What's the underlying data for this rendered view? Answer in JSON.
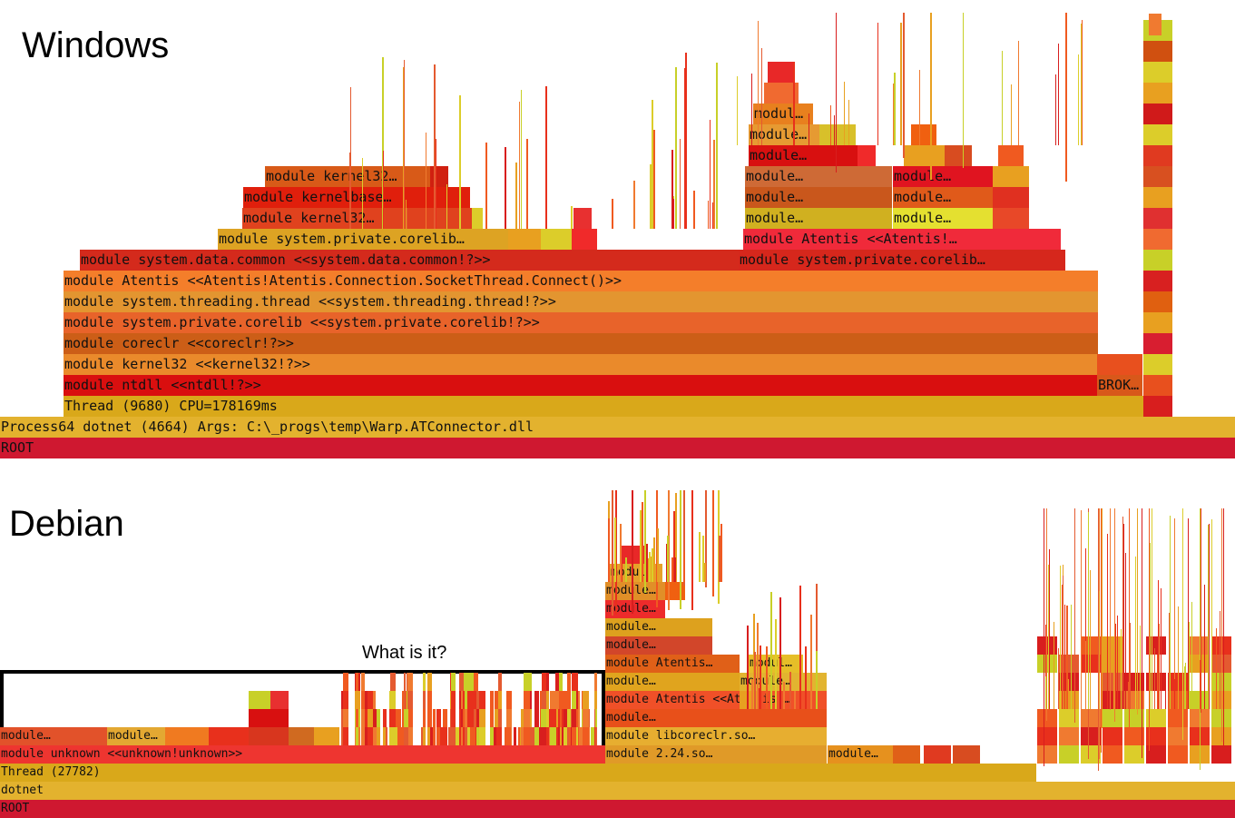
{
  "windows": {
    "title": "Windows",
    "frames": [
      {
        "label": "ROOT",
        "color": "#cf1830"
      },
      {
        "label": "Process64 dotnet (4664) Args:  C:\\_progs\\temp\\Warp.ATConnector.dll",
        "color": "#e3b22e"
      },
      {
        "label": "Thread (9680) CPU=178169ms",
        "color": "#d9a81a"
      },
      {
        "label": "module ntdll <<ntdll!?>>",
        "color": "#d90f0f"
      },
      {
        "label": "module kernel32 <<kernel32!?>>",
        "color": "#ea8a2b"
      },
      {
        "label": "module coreclr <<coreclr!?>>",
        "color": "#cc5e17"
      },
      {
        "label": "module system.private.corelib <<system.private.corelib!?>>",
        "color": "#e8632a"
      },
      {
        "label": "module system.threading.thread <<system.threading.thread!?>>",
        "color": "#e39530"
      },
      {
        "label": "module Atentis <<Atentis!Atentis.Connection.SocketThread.Connect()>>",
        "color": "#f47e2a"
      },
      {
        "label": "module system.data.common <<system.data.common!?>>",
        "color": "#d42a1c"
      },
      {
        "label": "module system.private.corelib…",
        "color": "#dda323"
      },
      {
        "label": "module kernel32…",
        "color": "#e0421e"
      },
      {
        "label": "module kernelbase…",
        "color": "#e01f0c"
      },
      {
        "label": "module kernel32…",
        "color": "#d85a18"
      },
      {
        "label": "module system.private.corelib…",
        "color": "#d6271c"
      },
      {
        "label": "module Atentis <<Atentis!…",
        "color": "#f02a3a"
      },
      {
        "label": "module…",
        "color": "#d0b020"
      },
      {
        "label": "module…",
        "color": "#c9571c"
      },
      {
        "label": "module…",
        "color": "#ce6a36"
      },
      {
        "label": "module…",
        "color": "#e4e030"
      },
      {
        "label": "module…",
        "color": "#e05a1a"
      },
      {
        "label": "module…",
        "color": "#e01420"
      },
      {
        "label": "module…",
        "color": "#d81010"
      },
      {
        "label": "module…",
        "color": "#e69a32"
      },
      {
        "label": "modul…",
        "color": "#e8801e"
      },
      {
        "label": "BROK…",
        "color": "#d8581a"
      }
    ]
  },
  "debian": {
    "title": "Debian",
    "annotation": "What is it?",
    "frames": [
      {
        "label": "ROOT",
        "color": "#cf1830"
      },
      {
        "label": "dotnet",
        "color": "#e3b22e"
      },
      {
        "label": "Thread (27782)",
        "color": "#d9a81a"
      },
      {
        "label": "module unknown <<unknown!unknown>>",
        "color": "#ee3530"
      },
      {
        "label": "module…",
        "color": "#e2522a"
      },
      {
        "label": "module…",
        "color": "#e3a832"
      },
      {
        "label": "module 2.24.so…",
        "color": "#e09a28"
      },
      {
        "label": "module libcoreclr.so…",
        "color": "#e7ae30"
      },
      {
        "label": "module…",
        "color": "#e8501a"
      },
      {
        "label": "module Atentis <<Atentis!…",
        "color": "#f05028"
      },
      {
        "label": "module…",
        "color": "#e0a41e"
      },
      {
        "label": "module…",
        "color": "#e2b430"
      },
      {
        "label": "module Atentis…",
        "color": "#e06018"
      },
      {
        "label": "modul…",
        "color": "#e6be28"
      },
      {
        "label": "module…",
        "color": "#d2462a"
      },
      {
        "label": "module…",
        "color": "#dda11e"
      },
      {
        "label": "module…",
        "color": "#ed2b2b"
      },
      {
        "label": "module…",
        "color": "#e18f28"
      },
      {
        "label": "modul…",
        "color": "#e6a12a"
      },
      {
        "label": "module…",
        "color": "#e6911e"
      }
    ]
  }
}
